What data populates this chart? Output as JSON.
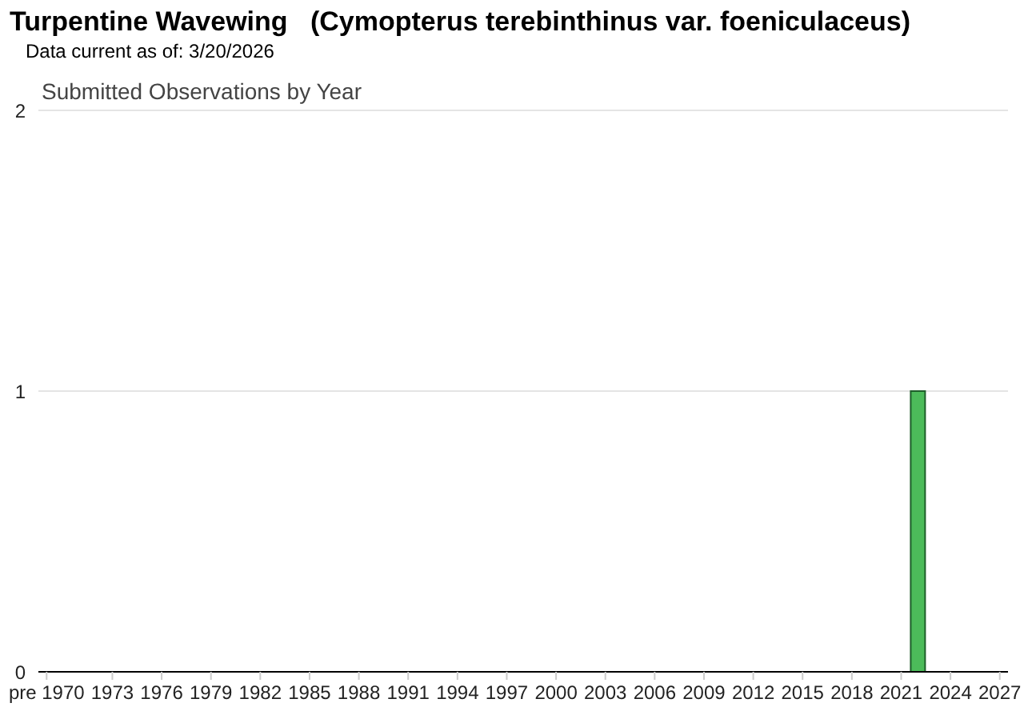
{
  "chart_data": {
    "type": "bar",
    "title": "Turpentine Wavewing   (Cymopterus terebinthinus var. foeniculaceus)",
    "subtitle": "Data current as of: 3/20/2026",
    "annotations": [
      "Submitted Observations by Year"
    ],
    "categories": [
      "pre 1970",
      null,
      null,
      null,
      "1973",
      null,
      null,
      "1976",
      null,
      null,
      "1979",
      null,
      null,
      "1982",
      null,
      null,
      "1985",
      null,
      null,
      "1988",
      null,
      null,
      "1991",
      null,
      null,
      "1994",
      null,
      null,
      "1997",
      null,
      null,
      "2000",
      null,
      null,
      "2003",
      null,
      null,
      "2006",
      null,
      null,
      "2009",
      null,
      null,
      "2012",
      null,
      null,
      "2015",
      null,
      null,
      "2018",
      null,
      null,
      "2021",
      null,
      null,
      "2024",
      null,
      null,
      "2027"
    ],
    "series": [
      {
        "color": "#4cbb5a",
        "values": [
          0,
          0,
          0,
          0,
          0,
          0,
          0,
          0,
          0,
          0,
          0,
          0,
          0,
          0,
          0,
          0,
          0,
          0,
          0,
          0,
          0,
          0,
          0,
          0,
          0,
          0,
          0,
          0,
          0,
          0,
          0,
          0,
          0,
          0,
          0,
          0,
          0,
          0,
          0,
          0,
          0,
          0,
          0,
          0,
          0,
          0,
          0,
          0,
          0,
          0,
          0,
          0,
          0,
          1,
          0,
          0,
          0,
          0,
          0
        ]
      }
    ],
    "ylim": [
      0,
      2
    ],
    "yticks": [
      0,
      1,
      2
    ],
    "grid": "y",
    "legend": false
  }
}
